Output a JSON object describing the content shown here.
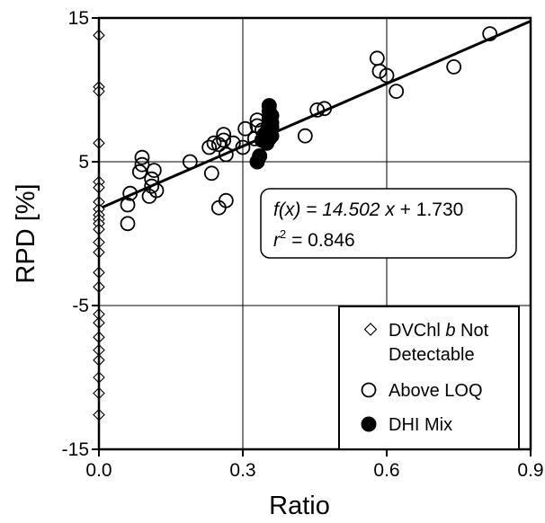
{
  "chart_data": {
    "type": "scatter",
    "xlabel": "Ratio",
    "ylabel": "RPD [%]",
    "xlim": [
      0.0,
      0.9
    ],
    "ylim": [
      -15,
      15
    ],
    "x_ticks": [
      0.0,
      0.3,
      0.6,
      0.9
    ],
    "x_tick_labels": [
      "0.0",
      "0.3",
      "0.6",
      "0.9"
    ],
    "y_ticks": [
      -15,
      -5,
      5,
      15
    ],
    "y_tick_labels": [
      "-15",
      "-5",
      "5",
      "15"
    ],
    "grid": true,
    "legend_position": "bottom-right",
    "annotation": {
      "fx_prefix": "f(",
      "fx_var": "x",
      "fx_suffix": ") = 14.502 ",
      "fx_var2": "x",
      "fx_tail": " + 1.730",
      "r2_base": "r",
      "r2_sup": "2",
      "r2_tail": " = 0.846"
    },
    "fit_line": {
      "slope": 14.502,
      "intercept": 1.73,
      "x_range": [
        0.0,
        0.9
      ]
    },
    "series": [
      {
        "name": "DVChl b Not Detectable",
        "legend_line1_pre": "DVChl ",
        "legend_line1_italic": "b",
        "legend_line1_post": " Not",
        "legend_line2": "Detectable",
        "marker": "diamond",
        "points": [
          [
            0,
            13.8
          ],
          [
            0,
            10.2
          ],
          [
            0,
            9.9
          ],
          [
            0,
            6.3
          ],
          [
            0,
            3.6
          ],
          [
            0,
            3.2
          ],
          [
            0,
            2.2
          ],
          [
            0,
            1.7
          ],
          [
            0,
            1.3
          ],
          [
            0,
            1.0
          ],
          [
            0,
            0.7
          ],
          [
            0,
            0.3
          ],
          [
            0,
            -0.6
          ],
          [
            0,
            -1.3
          ],
          [
            0,
            -2.7
          ],
          [
            0,
            -3.7
          ],
          [
            0,
            -5.6
          ],
          [
            0,
            -6.2
          ],
          [
            0,
            -7.2
          ],
          [
            0,
            -8.1
          ],
          [
            0,
            -8.8
          ],
          [
            0,
            -10.0
          ],
          [
            0,
            -11.1
          ],
          [
            0,
            -12.6
          ]
        ]
      },
      {
        "name": "Above LOQ",
        "marker": "open-circle",
        "points": [
          [
            0.06,
            0.7
          ],
          [
            0.06,
            2.0
          ],
          [
            0.065,
            2.8
          ],
          [
            0.085,
            4.3
          ],
          [
            0.09,
            4.8
          ],
          [
            0.09,
            5.3
          ],
          [
            0.105,
            2.6
          ],
          [
            0.11,
            3.3
          ],
          [
            0.11,
            3.8
          ],
          [
            0.115,
            4.4
          ],
          [
            0.12,
            3.0
          ],
          [
            0.19,
            5.0
          ],
          [
            0.23,
            6.0
          ],
          [
            0.235,
            4.2
          ],
          [
            0.24,
            6.3
          ],
          [
            0.25,
            1.8
          ],
          [
            0.25,
            6.2
          ],
          [
            0.26,
            6.5
          ],
          [
            0.26,
            6.9
          ],
          [
            0.265,
            5.5
          ],
          [
            0.265,
            2.3
          ],
          [
            0.28,
            6.3
          ],
          [
            0.3,
            6.0
          ],
          [
            0.305,
            7.3
          ],
          [
            0.325,
            6.6
          ],
          [
            0.33,
            7.5
          ],
          [
            0.33,
            7.9
          ],
          [
            0.34,
            7.2
          ],
          [
            0.43,
            6.8
          ],
          [
            0.455,
            8.6
          ],
          [
            0.47,
            8.7
          ],
          [
            0.58,
            12.2
          ],
          [
            0.585,
            11.3
          ],
          [
            0.6,
            11.0
          ],
          [
            0.62,
            9.9
          ],
          [
            0.74,
            11.6
          ],
          [
            0.815,
            13.9
          ]
        ]
      },
      {
        "name": "DHI Mix",
        "marker": "filled-circle",
        "points": [
          [
            0.33,
            5.0
          ],
          [
            0.335,
            5.4
          ],
          [
            0.34,
            6.5
          ],
          [
            0.345,
            6.9
          ],
          [
            0.35,
            6.3
          ],
          [
            0.35,
            7.1
          ],
          [
            0.355,
            6.6
          ],
          [
            0.355,
            7.6
          ],
          [
            0.355,
            8.0
          ],
          [
            0.355,
            8.5
          ],
          [
            0.355,
            8.9
          ],
          [
            0.36,
            6.8
          ],
          [
            0.36,
            7.4
          ],
          [
            0.36,
            8.2
          ],
          [
            0.36,
            7.7
          ]
        ]
      }
    ]
  }
}
